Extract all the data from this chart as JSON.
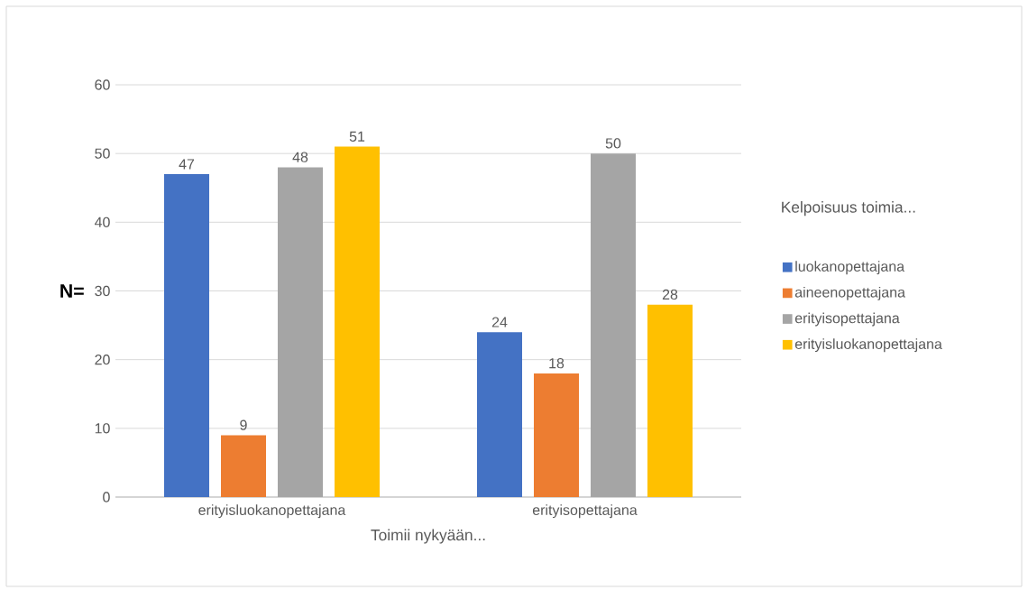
{
  "chart_data": {
    "type": "bar",
    "xlabel": "Toimii nykyään...",
    "ylabel": "N=",
    "legend_title": "Kelpoisuus toimia...",
    "categories": [
      "erityisluokanopettajana",
      "erityisopettajana"
    ],
    "series": [
      {
        "name": "luokanopettajana",
        "color": "#4472c4",
        "values": [
          47,
          24
        ]
      },
      {
        "name": "aineenopettajana",
        "color": "#ed7d31",
        "values": [
          9,
          18
        ]
      },
      {
        "name": "erityisopettajana",
        "color": "#a5a5a5",
        "values": [
          48,
          50
        ]
      },
      {
        "name": "erityisluokanopettajana",
        "color": "#ffc000",
        "values": [
          51,
          28
        ]
      }
    ],
    "ylim": [
      0,
      60
    ],
    "yticks": [
      0,
      10,
      20,
      30,
      40,
      50,
      60
    ],
    "grid": "y",
    "legend": "right",
    "data_labels": true
  }
}
